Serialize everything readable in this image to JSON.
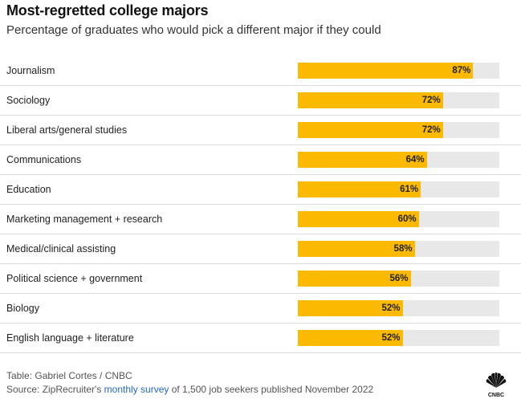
{
  "chart_data": {
    "type": "bar",
    "orientation": "horizontal",
    "title": "Most-regretted college majors",
    "subtitle": "Percentage of graduates who would pick a different major if they could",
    "categories": [
      "Journalism",
      "Sociology",
      "Liberal arts/general studies",
      "Communications",
      "Education",
      "Marketing management + research",
      "Medical/clinical assisting",
      "Political science + government",
      "Biology",
      "English language + literature"
    ],
    "values": [
      87,
      72,
      72,
      64,
      61,
      60,
      58,
      56,
      52,
      52
    ],
    "value_suffix": "%",
    "xlim": [
      0,
      100
    ],
    "grid": false,
    "bar_color": "#fbb900",
    "track_color": "#e8e8e8"
  },
  "footer": {
    "table_credit": "Table: Gabriel Cortes / CNBC",
    "source_prefix": "Source: ZipRecruiter's ",
    "source_link": "monthly survey",
    "source_suffix": " of 1,500 job seekers published November 2022"
  },
  "logo": {
    "icon": "cnbc-peacock-icon",
    "text": "CNBC"
  },
  "colors": {
    "link": "#2468c6"
  }
}
